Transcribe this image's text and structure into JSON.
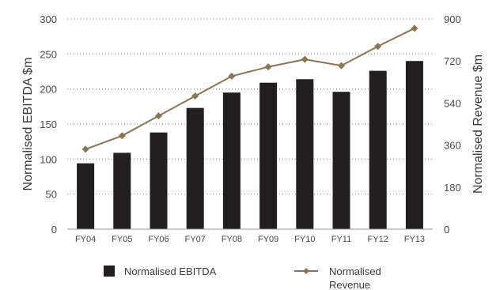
{
  "chart_data": {
    "type": "bar",
    "categories": [
      "FY04",
      "FY05",
      "FY06",
      "FY07",
      "FY08",
      "FY09",
      "FY10",
      "FY11",
      "FY12",
      "FY13"
    ],
    "series": [
      {
        "name": "Normalised EBITDA",
        "type": "bar",
        "axis": "left",
        "color": "#231f20",
        "values": [
          94,
          109,
          138,
          173,
          195,
          209,
          214,
          196,
          226,
          240
        ]
      },
      {
        "name": "Normalised Revenue",
        "type": "line",
        "axis": "right",
        "color": "#8b7355",
        "marker": "diamond",
        "values": [
          342,
          400,
          485,
          570,
          655,
          695,
          727,
          700,
          783,
          860
        ]
      }
    ],
    "ylabel": "Normalised EBITDA $m",
    "y2label": "Normalised Revenue $m",
    "ylim": [
      0,
      300
    ],
    "y2lim": [
      0,
      900
    ],
    "yticks": [
      "0",
      "50",
      "100",
      "150",
      "200",
      "250",
      "300"
    ],
    "y2ticks": [
      "0",
      "180",
      "360",
      "540",
      "720",
      "900"
    ],
    "grid": true,
    "legend_position": "bottom"
  }
}
